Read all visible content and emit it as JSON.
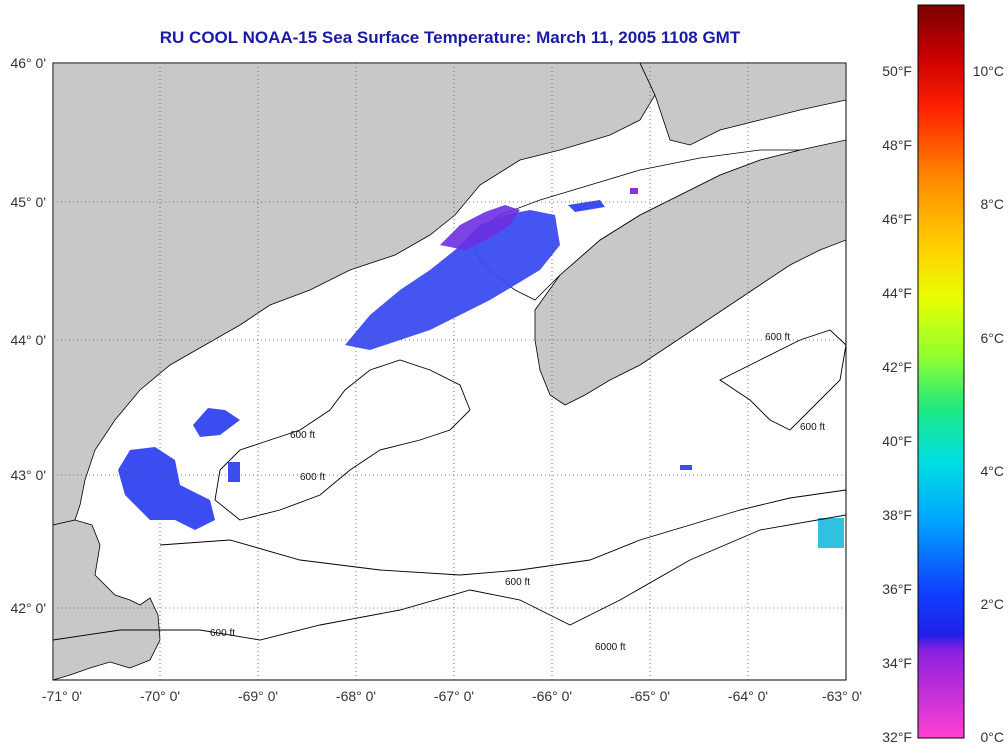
{
  "title": "RU COOL  NOAA-15  Sea Surface Temperature:  March 11, 2005 1108 GMT",
  "map": {
    "lon_ticks": [
      "-71° 0'",
      "-70° 0'",
      "-69° 0'",
      "-68° 0'",
      "-67° 0'",
      "-66° 0'",
      "-65° 0'",
      "-64° 0'",
      "-63° 0'"
    ],
    "lat_ticks": [
      "46° 0'",
      "45° 0'",
      "44° 0'",
      "43° 0'",
      "42° 0'"
    ],
    "contour_label": "600 ft",
    "contour_label_deep": "6000 ft",
    "colors": {
      "land": "#c8c8c8",
      "water": "#ffffff",
      "cold_sst": "#3b4cf0"
    }
  },
  "colorbar": {
    "fahrenheit": [
      "50°F",
      "48°F",
      "46°F",
      "44°F",
      "42°F",
      "40°F",
      "38°F",
      "36°F",
      "34°F",
      "32°F"
    ],
    "celsius": [
      "10°C",
      "8°C",
      "6°C",
      "4°C",
      "2°C",
      "0°C"
    ],
    "gradient": [
      "#7a0000",
      "#d80000",
      "#ff3000",
      "#ff8c00",
      "#ffd000",
      "#e8ff00",
      "#8cff30",
      "#20e880",
      "#00e0e0",
      "#00a0ff",
      "#1040ff",
      "#2020ff",
      "#8a20e0",
      "#e020e0",
      "#ff40c0"
    ]
  }
}
